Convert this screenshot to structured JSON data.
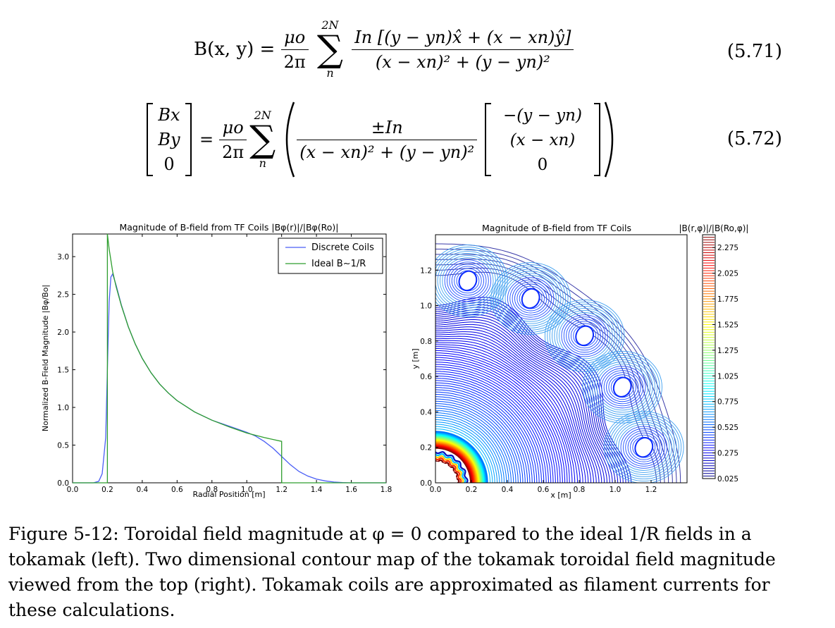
{
  "equations": {
    "eq1": {
      "lhs": "B(x, y) =",
      "coef_num": "μo",
      "coef_den": "2π",
      "sum_sup": "2N",
      "sum_sub": "n",
      "num": "In [(y − yn)x̂ + (x − xn)ŷ]",
      "den": "(x − xn)² + (y − yn)²",
      "number": "(5.71)"
    },
    "eq2": {
      "vec_lhs": [
        "Bx",
        "By",
        "0"
      ],
      "eq_sign": "=",
      "coef_num": "μo",
      "coef_den": "2π",
      "sum_sup": "2N",
      "sum_sub": "n",
      "num": "±In",
      "den": "(x − xn)² + (y − yn)²",
      "vec_rhs": [
        "−(y − yn)",
        "(x − xn)",
        "0"
      ],
      "number": "(5.72)"
    }
  },
  "left_chart": {
    "title": "Magnitude of B-field from TF Coils |Bφ(r)|/|Bφ(Ro)|",
    "xlabel": "Radial Position [m]",
    "ylabel": "Normalized B-Field Magnitude |Bφ/Bo|",
    "legend": [
      "Discrete Coils",
      "Ideal B∼1/R"
    ]
  },
  "right_chart": {
    "title": "Magnitude of B-field from TF Coils",
    "colorbar_title": "|B(r,φ)|/|B(Ro,φ)|",
    "xlabel": "x [m]",
    "ylabel": "y [m]"
  },
  "chart_data": [
    {
      "type": "line",
      "title": "Magnitude of B-field from TF Coils |Bφ(r)|/|Bφ(Ro)|",
      "xlabel": "Radial Position [m]",
      "ylabel": "Normalized B-Field Magnitude |Bφ/Bo|",
      "xlim": [
        0,
        1.8
      ],
      "ylim": [
        0,
        3.3
      ],
      "xticks": [
        "0.0",
        "0.2",
        "0.4",
        "0.6",
        "0.8",
        "1.0",
        "1.2",
        "1.4",
        "1.6",
        "1.8"
      ],
      "yticks": [
        "0.0",
        "0.5",
        "1.0",
        "1.5",
        "2.0",
        "2.5",
        "3.0"
      ],
      "legend_position": "top-right",
      "series": [
        {
          "name": "Discrete Coils",
          "color": "#4a5ef5",
          "x": [
            0.0,
            0.12,
            0.15,
            0.17,
            0.19,
            0.2,
            0.21,
            0.22,
            0.23,
            0.25,
            0.28,
            0.32,
            0.36,
            0.4,
            0.45,
            0.5,
            0.55,
            0.6,
            0.7,
            0.8,
            0.9,
            1.0,
            1.05,
            1.1,
            1.15,
            1.2,
            1.25,
            1.3,
            1.35,
            1.4,
            1.45,
            1.5,
            1.55,
            1.6,
            1.8
          ],
          "y": [
            0.0,
            0.0,
            0.02,
            0.12,
            0.6,
            1.5,
            2.4,
            2.73,
            2.77,
            2.62,
            2.36,
            2.07,
            1.84,
            1.65,
            1.46,
            1.31,
            1.19,
            1.09,
            0.94,
            0.83,
            0.75,
            0.67,
            0.62,
            0.55,
            0.46,
            0.35,
            0.24,
            0.15,
            0.09,
            0.05,
            0.025,
            0.01,
            0.004,
            0.0,
            0.0
          ]
        },
        {
          "name": "Ideal B∼1/R",
          "color": "#2e9e2e",
          "x": [
            0.0,
            0.2,
            0.2,
            0.21,
            0.22,
            0.23,
            0.25,
            0.28,
            0.32,
            0.36,
            0.4,
            0.45,
            0.5,
            0.55,
            0.6,
            0.7,
            0.8,
            0.9,
            1.0,
            1.1,
            1.2,
            1.2,
            1.8
          ],
          "y": [
            0.0,
            0.0,
            3.3,
            3.1,
            2.95,
            2.8,
            2.6,
            2.35,
            2.07,
            1.84,
            1.65,
            1.46,
            1.31,
            1.19,
            1.09,
            0.94,
            0.83,
            0.74,
            0.66,
            0.6,
            0.55,
            0.0,
            0.0
          ]
        }
      ]
    },
    {
      "type": "heatmap",
      "title": "Magnitude of B-field from TF Coils",
      "xlabel": "x [m]",
      "ylabel": "y [m]",
      "xlim": [
        0,
        1.4
      ],
      "ylim": [
        0,
        1.4
      ],
      "xticks": [
        "0.0",
        "0.2",
        "0.4",
        "0.6",
        "0.8",
        "1.0",
        "1.2"
      ],
      "yticks": [
        "0.0",
        "0.2",
        "0.4",
        "0.6",
        "0.8",
        "1.0",
        "1.2"
      ],
      "colorbar_title": "|B(r,φ)|/|B(Ro,φ)|",
      "colorbar_ticks": [
        "0.025",
        "0.275",
        "0.525",
        "0.775",
        "1.025",
        "1.275",
        "1.525",
        "1.775",
        "2.025",
        "2.275"
      ],
      "colorbar_range": [
        0.025,
        2.4
      ],
      "coil_positions": [
        [
          0.18,
          1.14
        ],
        [
          0.53,
          1.04
        ],
        [
          0.83,
          0.83
        ],
        [
          1.04,
          0.54
        ],
        [
          1.16,
          0.2
        ]
      ],
      "colormap": "jet"
    }
  ],
  "caption": "Figure 5-12: Toroidal field magnitude at φ = 0 compared to the ideal 1/R fields in a tokamak (left). Two dimensional contour map of the tokamak toroidal field magnitude viewed from the top (right). Tokamak coils are approximated as filament currents for these calculations."
}
